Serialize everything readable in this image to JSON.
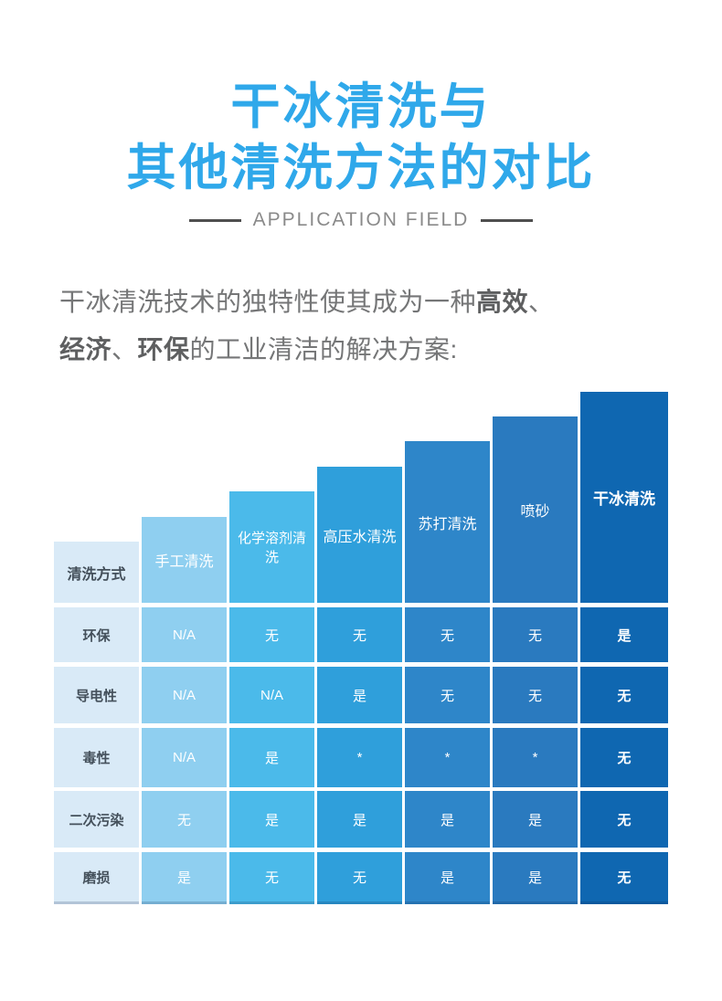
{
  "title": {
    "line1": "干冰清洗与",
    "line2": "其他清洗方法的对比"
  },
  "subtitle": "APPLICATION FIELD",
  "intro": {
    "line1": [
      {
        "t": "干冰清洗技术的独特性使其成为一种"
      },
      {
        "t": "高效"
      },
      {
        "t": "、"
      }
    ],
    "line2": [
      {
        "t": "经济"
      },
      {
        "t": "、"
      },
      {
        "t": "环保"
      },
      {
        "t": "的工业清洁的解决方案:"
      }
    ]
  },
  "theme": {
    "title_blue": "#2FA8EA",
    "subtitle_gray": "#8A8A8A",
    "divider_gray": "#4F4F4F",
    "body_text_gray": "#757677",
    "table_label_dark": "#44505B"
  },
  "chart_data": {
    "type": "table",
    "title": "干冰清洗与其他清洗方法的对比",
    "subtitle": "APPLICATION FIELD",
    "layout": "stepped columns ascending left-to-right, shared baseline, one color per column",
    "corner_label": "清洗方式",
    "criteria": [
      "环保",
      "导电性",
      "毒性",
      "二次污染",
      "磨损"
    ],
    "methods": [
      "手工清洗",
      "化学溶剂清洗",
      "高压水清洗",
      "苏打清洗",
      "喷砂",
      "干冰清洗"
    ],
    "rows": [
      {
        "criterion": "环保",
        "values": [
          "N/A",
          "无",
          "无",
          "无",
          "无",
          "是"
        ]
      },
      {
        "criterion": "导电性",
        "values": [
          "N/A",
          "N/A",
          "是",
          "无",
          "无",
          "无"
        ]
      },
      {
        "criterion": "毒性",
        "values": [
          "N/A",
          "是",
          "*",
          "*",
          "*",
          "无"
        ]
      },
      {
        "criterion": "二次污染",
        "values": [
          "无",
          "是",
          "是",
          "是",
          "是",
          "无"
        ]
      },
      {
        "criterion": "磨损",
        "values": [
          "是",
          "无",
          "无",
          "是",
          "是",
          "无"
        ]
      }
    ],
    "columns": [
      {
        "label": "清洗方式",
        "role": "row-header",
        "color": "#D9EAF7",
        "cells": [
          "环保",
          "导电性",
          "毒性",
          "二次污染",
          "磨损"
        ]
      },
      {
        "label": "手工清洗",
        "color": "#8FCFF0",
        "cells": [
          "N/A",
          "N/A",
          "N/A",
          "无",
          "是"
        ]
      },
      {
        "label": "化学溶剂清洗",
        "color": "#4BBAEA",
        "cells": [
          "无",
          "N/A",
          "是",
          "是",
          "无"
        ]
      },
      {
        "label": "高压水清洗",
        "color": "#2F9FDB",
        "cells": [
          "无",
          "是",
          "*",
          "是",
          "无"
        ]
      },
      {
        "label": "苏打清洗",
        "color": "#2E86C9",
        "cells": [
          "无",
          "无",
          "*",
          "是",
          "是"
        ]
      },
      {
        "label": "喷砂",
        "color": "#2A7ABF",
        "cells": [
          "无",
          "无",
          "*",
          "是",
          "是"
        ]
      },
      {
        "label": "干冰清洗",
        "color": "#0F67B1",
        "cells": [
          "是",
          "无",
          "无",
          "无",
          "无"
        ]
      }
    ]
  }
}
